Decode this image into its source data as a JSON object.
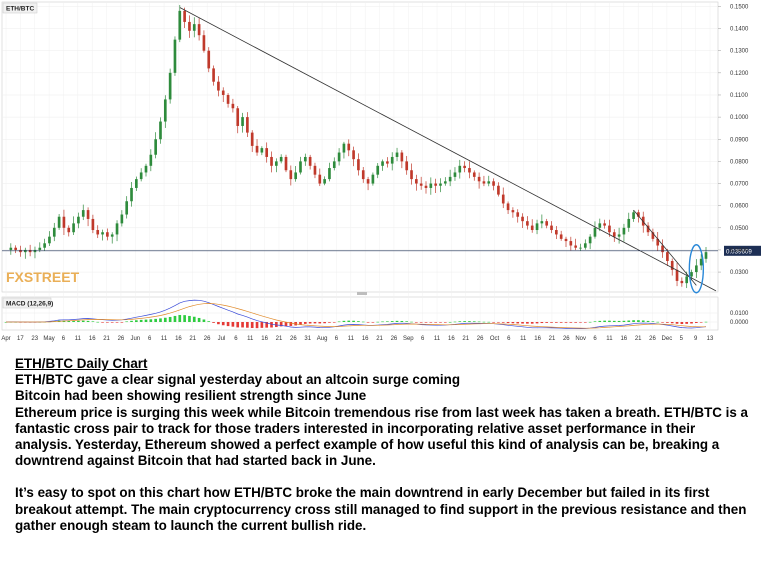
{
  "chart_data": {
    "type": "candlestick",
    "symbol": "ETH/BTC",
    "macd_label": "MACD (12,26,9)",
    "watermark": "FXSTREET",
    "current_price_label": "0.039609",
    "current_price": 0.039609,
    "ylim": [
      0.021,
      0.152
    ],
    "y_ticks": [
      {
        "v": 0.03,
        "label": "0.0300"
      },
      {
        "v": 0.04,
        "label": "0.0400"
      },
      {
        "v": 0.05,
        "label": "0.0500"
      },
      {
        "v": 0.06,
        "label": "0.0600"
      },
      {
        "v": 0.07,
        "label": "0.0700"
      },
      {
        "v": 0.08,
        "label": "0.0800"
      },
      {
        "v": 0.09,
        "label": "0.0900"
      },
      {
        "v": 0.1,
        "label": "0.1000"
      },
      {
        "v": 0.11,
        "label": "0.1100"
      },
      {
        "v": 0.12,
        "label": "0.1200"
      },
      {
        "v": 0.13,
        "label": "0.1300"
      },
      {
        "v": 0.14,
        "label": "0.1400"
      },
      {
        "v": 0.15,
        "label": "0.1500"
      }
    ],
    "macd_ticks": [
      {
        "v": 0.01,
        "label": "0.0100"
      },
      {
        "v": 0.0,
        "label": "0.0000"
      }
    ],
    "x_ticks": [
      "Apr",
      "17",
      "23",
      "May",
      "6",
      "11",
      "16",
      "21",
      "26",
      "Jun",
      "6",
      "11",
      "16",
      "21",
      "26",
      "Jul",
      "6",
      "11",
      "16",
      "21",
      "26",
      "31",
      "Aug",
      "6",
      "11",
      "16",
      "21",
      "26",
      "Sep",
      "6",
      "11",
      "16",
      "21",
      "26",
      "Oct",
      "6",
      "11",
      "16",
      "21",
      "26",
      "Nov",
      "6",
      "11",
      "16",
      "21",
      "26",
      "Dec",
      "5",
      "9",
      "13"
    ],
    "trendline_main": {
      "from": [
        0.1495
      ],
      "to": [
        0.0215
      ]
    },
    "trendline_short": {
      "from": [
        0.058
      ],
      "to": [
        0.024
      ]
    },
    "price_path": [
      0.04,
      0.041,
      0.04,
      0.039,
      0.04,
      0.039,
      0.04,
      0.041,
      0.043,
      0.046,
      0.05,
      0.055,
      0.05,
      0.048,
      0.052,
      0.055,
      0.058,
      0.054,
      0.049,
      0.047,
      0.048,
      0.046,
      0.047,
      0.052,
      0.056,
      0.062,
      0.068,
      0.072,
      0.075,
      0.078,
      0.083,
      0.09,
      0.098,
      0.108,
      0.12,
      0.135,
      0.148,
      0.143,
      0.139,
      0.142,
      0.137,
      0.13,
      0.122,
      0.116,
      0.112,
      0.11,
      0.106,
      0.104,
      0.096,
      0.1,
      0.093,
      0.087,
      0.084,
      0.086,
      0.082,
      0.078,
      0.08,
      0.082,
      0.076,
      0.072,
      0.075,
      0.08,
      0.082,
      0.078,
      0.074,
      0.07,
      0.072,
      0.077,
      0.08,
      0.084,
      0.088,
      0.085,
      0.081,
      0.076,
      0.072,
      0.07,
      0.074,
      0.078,
      0.08,
      0.079,
      0.082,
      0.084,
      0.08,
      0.076,
      0.072,
      0.07,
      0.069,
      0.068,
      0.07,
      0.069,
      0.07,
      0.071,
      0.073,
      0.075,
      0.078,
      0.077,
      0.075,
      0.073,
      0.071,
      0.07,
      0.071,
      0.069,
      0.065,
      0.061,
      0.058,
      0.057,
      0.055,
      0.053,
      0.051,
      0.049,
      0.052,
      0.053,
      0.051,
      0.049,
      0.047,
      0.045,
      0.044,
      0.042,
      0.041,
      0.041,
      0.043,
      0.046,
      0.05,
      0.052,
      0.051,
      0.048,
      0.046,
      0.047,
      0.05,
      0.054,
      0.057,
      0.055,
      0.051,
      0.048,
      0.045,
      0.042,
      0.039,
      0.035,
      0.031,
      0.026,
      0.025,
      0.028,
      0.03,
      0.033,
      0.036,
      0.039
    ]
  },
  "caption": {
    "title": "ETH/BTC Daily Chart",
    "line1": "ETH/BTC gave a clear signal yesterday about an altcoin surge coming",
    "line2": "Bitcoin had been showing resilient strength since June",
    "para1": "Ethereum price is surging this week while Bitcoin tremendous rise from last week has taken a breath. ETH/BTC is a fantastic cross pair to track for those traders interested in incorporating relative asset performance in their analysis. Yesterday, Ethereum showed a perfect example of how useful this kind of analysis can be, breaking a downtrend against Bitcoin that had started back in June.",
    "para2": "It’s easy to spot on this chart how ETH/BTC broke the main downtrend in early December but failed in its first breakout attempt. The main cryptocurrency cross still managed to find support in the previous resistance and then gather enough steam to launch the current bullish ride."
  },
  "colors": {
    "bull": "#2e8b3c",
    "bear": "#c0392b",
    "macd_line": "#3a4bd8",
    "signal_line": "#e08a2a",
    "hist_pos": "#2ecc40",
    "hist_neg": "#e53935",
    "highlight": "#2a88d8",
    "price_tag": "#1d2f55"
  }
}
